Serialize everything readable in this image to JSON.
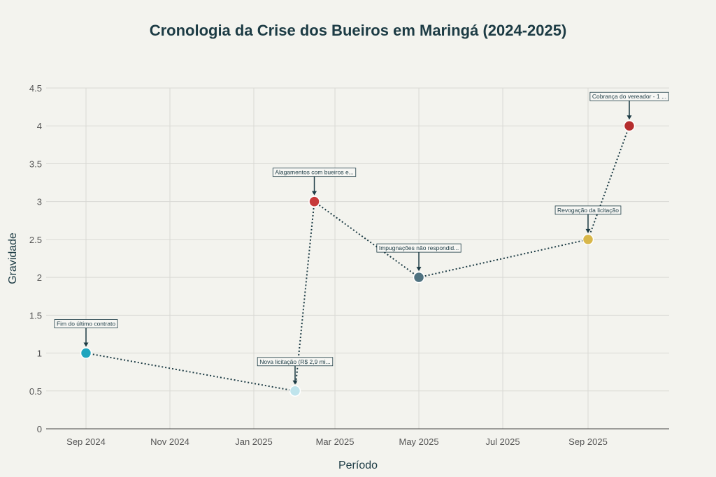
{
  "chart_data": {
    "type": "scatter",
    "title": "Cronologia da Crise dos Bueiros em Maringá (2024-2025)",
    "xlabel": "Período",
    "ylabel": "Gravidade",
    "x_tick_labels": [
      "Sep 2024",
      "Nov 2024",
      "Jan 2025",
      "Mar 2025",
      "May 2025",
      "Jul 2025",
      "Sep 2025"
    ],
    "x_tick_dates": [
      "2024-09-01",
      "2024-11-01",
      "2025-01-01",
      "2025-03-01",
      "2025-05-01",
      "2025-07-01",
      "2025-09-01"
    ],
    "x_range": [
      "2024-08-01",
      "2025-11-01"
    ],
    "ylim": [
      0,
      4.5
    ],
    "y_ticks": [
      0,
      0.5,
      1,
      1.5,
      2,
      2.5,
      3,
      3.5,
      4,
      4.5
    ],
    "y_tick_labels": [
      "0",
      "0.5",
      "1",
      "1.5",
      "2",
      "2.5",
      "3",
      "3.5",
      "4",
      "4.5"
    ],
    "grid": true,
    "legend": "none",
    "points": [
      {
        "date": "2024-09-01",
        "y": 1.0,
        "label": "Fim do último contrato",
        "color": "#1fa5be"
      },
      {
        "date": "2025-01-31",
        "y": 0.5,
        "label": "Nova licitação (R$ 2,9 mi...",
        "color": "#bfe4ec"
      },
      {
        "date": "2025-02-14",
        "y": 3.0,
        "label": "Alagamentos com bueiros e...",
        "color": "#c73a3a"
      },
      {
        "date": "2025-05-01",
        "y": 2.0,
        "label": "Impugnações não respondid...",
        "color": "#4f7280"
      },
      {
        "date": "2025-09-01",
        "y": 2.5,
        "label": "Revogação da licitação",
        "color": "#d8b74a"
      },
      {
        "date": "2025-10-01",
        "y": 4.0,
        "label": "Cobrança do vereador - 1 ...",
        "color": "#b52e2e"
      }
    ]
  }
}
